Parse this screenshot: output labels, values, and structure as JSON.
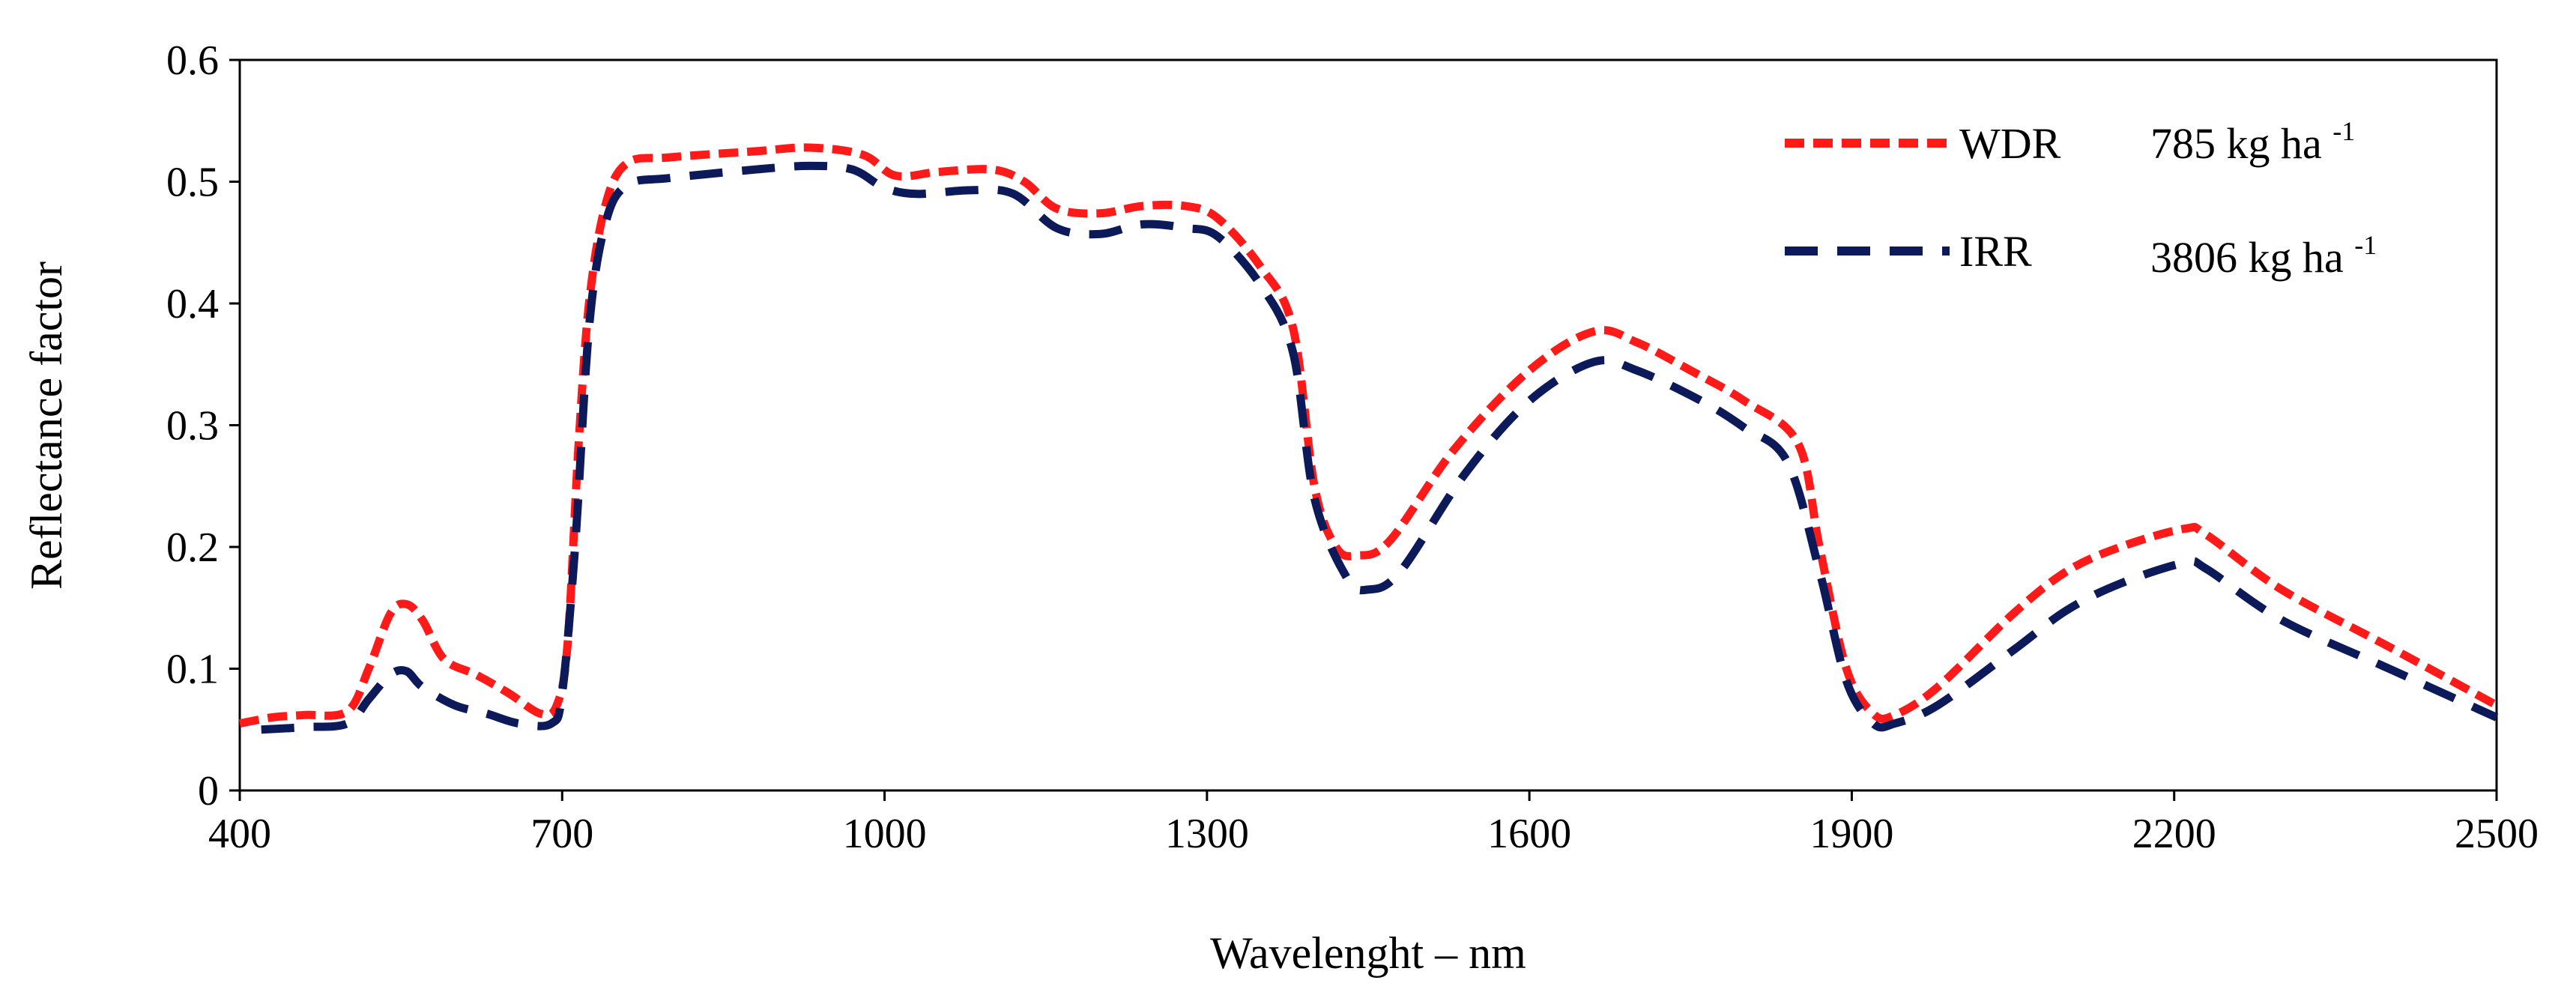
{
  "chart_data": {
    "type": "line",
    "title": "",
    "xlabel": "Wavelenght – nm",
    "ylabel": "Reflectance factor",
    "xlim": [
      400,
      2500
    ],
    "ylim": [
      0,
      0.6
    ],
    "x_ticks": [
      400,
      700,
      1000,
      1300,
      1600,
      1900,
      2200,
      2500
    ],
    "x_tick_labels": [
      "400",
      "700",
      "1000",
      "1300",
      "1600",
      "1900",
      "2200",
      "2500"
    ],
    "y_ticks": [
      0,
      0.1,
      0.2,
      0.3,
      0.4,
      0.5,
      0.6
    ],
    "y_tick_labels": [
      "0",
      "0.1",
      "0.2",
      "0.3",
      "0.4",
      "0.5",
      "0.6"
    ],
    "grid": false,
    "legend_position": "top-right",
    "series": [
      {
        "name": "WDR",
        "yield_value": "785 kg ha",
        "yield_sup": "-1",
        "color": "#ff1a1a",
        "dash": "short",
        "points": [
          [
            400,
            0.055
          ],
          [
            430,
            0.06
          ],
          [
            460,
            0.062
          ],
          [
            500,
            0.065
          ],
          [
            520,
            0.1
          ],
          [
            540,
            0.145
          ],
          [
            555,
            0.153
          ],
          [
            570,
            0.14
          ],
          [
            590,
            0.108
          ],
          [
            620,
            0.095
          ],
          [
            650,
            0.08
          ],
          [
            680,
            0.063
          ],
          [
            695,
            0.07
          ],
          [
            705,
            0.12
          ],
          [
            715,
            0.28
          ],
          [
            725,
            0.4
          ],
          [
            740,
            0.48
          ],
          [
            760,
            0.515
          ],
          [
            800,
            0.52
          ],
          [
            880,
            0.525
          ],
          [
            930,
            0.528
          ],
          [
            980,
            0.522
          ],
          [
            1010,
            0.505
          ],
          [
            1050,
            0.508
          ],
          [
            1100,
            0.51
          ],
          [
            1130,
            0.5
          ],
          [
            1160,
            0.478
          ],
          [
            1200,
            0.474
          ],
          [
            1240,
            0.48
          ],
          [
            1280,
            0.48
          ],
          [
            1310,
            0.47
          ],
          [
            1350,
            0.43
          ],
          [
            1380,
            0.38
          ],
          [
            1400,
            0.25
          ],
          [
            1420,
            0.2
          ],
          [
            1440,
            0.193
          ],
          [
            1470,
            0.205
          ],
          [
            1530,
            0.28
          ],
          [
            1600,
            0.345
          ],
          [
            1660,
            0.377
          ],
          [
            1700,
            0.368
          ],
          [
            1750,
            0.345
          ],
          [
            1800,
            0.32
          ],
          [
            1850,
            0.285
          ],
          [
            1870,
            0.2
          ],
          [
            1895,
            0.1
          ],
          [
            1920,
            0.063
          ],
          [
            1940,
            0.062
          ],
          [
            1980,
            0.085
          ],
          [
            2050,
            0.145
          ],
          [
            2100,
            0.18
          ],
          [
            2150,
            0.2
          ],
          [
            2210,
            0.215
          ],
          [
            2230,
            0.21
          ],
          [
            2300,
            0.165
          ],
          [
            2400,
            0.118
          ],
          [
            2500,
            0.07
          ]
        ]
      },
      {
        "name": "IRR",
        "yield_value": "3806 kg ha",
        "yield_sup": "-1",
        "color": "#0d1a5a",
        "dash": "long",
        "points": [
          [
            420,
            0.05
          ],
          [
            460,
            0.052
          ],
          [
            500,
            0.055
          ],
          [
            520,
            0.075
          ],
          [
            540,
            0.095
          ],
          [
            555,
            0.098
          ],
          [
            570,
            0.085
          ],
          [
            600,
            0.07
          ],
          [
            630,
            0.063
          ],
          [
            660,
            0.055
          ],
          [
            690,
            0.055
          ],
          [
            700,
            0.08
          ],
          [
            712,
            0.2
          ],
          [
            725,
            0.38
          ],
          [
            740,
            0.465
          ],
          [
            760,
            0.497
          ],
          [
            800,
            0.503
          ],
          [
            880,
            0.51
          ],
          [
            930,
            0.513
          ],
          [
            970,
            0.51
          ],
          [
            1000,
            0.495
          ],
          [
            1030,
            0.49
          ],
          [
            1080,
            0.493
          ],
          [
            1120,
            0.49
          ],
          [
            1160,
            0.462
          ],
          [
            1200,
            0.457
          ],
          [
            1240,
            0.465
          ],
          [
            1280,
            0.462
          ],
          [
            1310,
            0.455
          ],
          [
            1350,
            0.415
          ],
          [
            1380,
            0.36
          ],
          [
            1400,
            0.24
          ],
          [
            1430,
            0.175
          ],
          [
            1450,
            0.165
          ],
          [
            1480,
            0.18
          ],
          [
            1540,
            0.26
          ],
          [
            1600,
            0.32
          ],
          [
            1660,
            0.352
          ],
          [
            1700,
            0.345
          ],
          [
            1760,
            0.32
          ],
          [
            1800,
            0.298
          ],
          [
            1840,
            0.27
          ],
          [
            1870,
            0.18
          ],
          [
            1895,
            0.09
          ],
          [
            1920,
            0.055
          ],
          [
            1940,
            0.055
          ],
          [
            1980,
            0.07
          ],
          [
            2050,
            0.115
          ],
          [
            2100,
            0.148
          ],
          [
            2150,
            0.17
          ],
          [
            2210,
            0.187
          ],
          [
            2230,
            0.182
          ],
          [
            2300,
            0.14
          ],
          [
            2400,
            0.1
          ],
          [
            2500,
            0.06
          ]
        ]
      }
    ]
  }
}
